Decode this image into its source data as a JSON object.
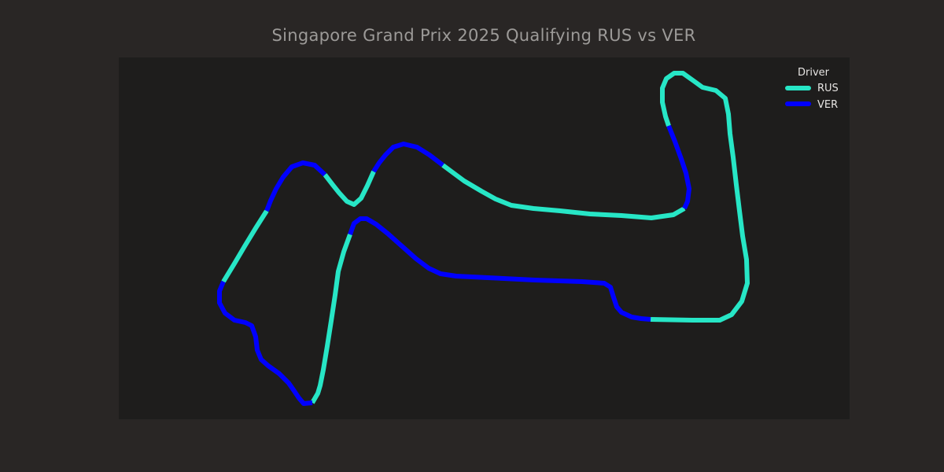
{
  "chart_data": {
    "type": "line",
    "title": "Singapore Grand Prix 2025 Qualifying RUS vs VER",
    "xlabel": "",
    "ylabel": "",
    "grid": false,
    "axes_visible": false,
    "legend": {
      "title": "Driver",
      "placement": "top-right",
      "entries": [
        {
          "name": "RUS",
          "color": "#27e6c6"
        },
        {
          "name": "VER",
          "color": "#0000ff"
        }
      ]
    },
    "description_note": "Track map: sequential x/y track coordinates colored by the faster driver in each mini-sector.",
    "series": [
      {
        "name": "RUS",
        "color": "#27e6c6",
        "segments": [
          [
            [
              827,
              406
            ],
            [
              880,
              407
            ],
            [
              915,
              407
            ],
            [
              930,
              400
            ],
            [
              943,
              383
            ],
            [
              950,
              360
            ],
            [
              949,
              330
            ],
            [
              944,
              300
            ],
            [
              940,
              268
            ],
            [
              936,
              235
            ],
            [
              932,
              200
            ],
            [
              928,
              170
            ],
            [
              926,
              145
            ],
            [
              922,
              125
            ],
            [
              910,
              115
            ],
            [
              893,
              111
            ],
            [
              882,
              103
            ],
            [
              868,
              93
            ],
            [
              857,
              93
            ],
            [
              847,
              100
            ],
            [
              842,
              112
            ],
            [
              842,
              130
            ],
            [
              846,
              148
            ],
            [
              850,
              160
            ]
          ],
          [
            [
              870,
              265
            ],
            [
              856,
              273
            ],
            [
              828,
              277
            ],
            [
              790,
              274
            ],
            [
              750,
              272
            ],
            [
              712,
              268
            ],
            [
              678,
              265
            ],
            [
              650,
              261
            ],
            [
              630,
              253
            ],
            [
              612,
              243
            ],
            [
              590,
              230
            ],
            [
              563,
              210
            ]
          ],
          [
            [
              475,
              218
            ],
            [
              467,
              236
            ],
            [
              459,
              252
            ],
            [
              450,
              260
            ],
            [
              441,
              256
            ],
            [
              431,
              245
            ],
            [
              423,
              235
            ],
            [
              413,
              222
            ]
          ],
          [
            [
              339,
              268
            ],
            [
              325,
              290
            ],
            [
              311,
              313
            ],
            [
              298,
              335
            ],
            [
              284,
              358
            ]
          ],
          [
            [
              445,
              298
            ],
            [
              437,
              320
            ],
            [
              430,
              345
            ],
            [
              426,
              375
            ],
            [
              421,
              408
            ],
            [
              416,
              440
            ],
            [
              411,
              470
            ],
            [
              407,
              490
            ],
            [
              404,
              500
            ],
            [
              397,
              512
            ]
          ]
        ]
      },
      {
        "name": "VER",
        "color": "#0000ff",
        "segments": [
          [
            [
              850,
              160
            ],
            [
              858,
              180
            ],
            [
              866,
              202
            ],
            [
              872,
              220
            ],
            [
              876,
              240
            ],
            [
              874,
              256
            ],
            [
              870,
              265
            ]
          ],
          [
            [
              563,
              210
            ],
            [
              546,
              197
            ],
            [
              530,
              187
            ],
            [
              513,
              183
            ],
            [
              500,
              187
            ],
            [
              490,
              197
            ],
            [
              482,
              207
            ],
            [
              475,
              218
            ]
          ],
          [
            [
              413,
              222
            ],
            [
              400,
              210
            ],
            [
              385,
              207
            ],
            [
              371,
              212
            ],
            [
              360,
              225
            ],
            [
              351,
              240
            ],
            [
              344,
              255
            ],
            [
              339,
              268
            ]
          ],
          [
            [
              284,
              358
            ],
            [
              279,
              370
            ],
            [
              279,
              385
            ],
            [
              286,
              398
            ],
            [
              298,
              407
            ],
            [
              312,
              410
            ],
            [
              320,
              414
            ],
            [
              325,
              428
            ],
            [
              327,
              445
            ],
            [
              332,
              457
            ],
            [
              341,
              465
            ],
            [
              355,
              475
            ],
            [
              367,
              487
            ],
            [
              374,
              497
            ],
            [
              380,
              506
            ],
            [
              386,
              513
            ],
            [
              397,
              512
            ]
          ],
          [
            [
              445,
              298
            ],
            [
              450,
              284
            ],
            [
              458,
              278
            ],
            [
              466,
              278
            ],
            [
              478,
              285
            ],
            [
              493,
              297
            ],
            [
              511,
              313
            ],
            [
              529,
              329
            ],
            [
              545,
              341
            ],
            [
              560,
              348
            ],
            [
              580,
              351
            ],
            [
              620,
              353
            ],
            [
              680,
              356
            ],
            [
              740,
              358
            ],
            [
              768,
              360
            ],
            [
              776,
              365
            ],
            [
              780,
              378
            ],
            [
              784,
              390
            ],
            [
              790,
              397
            ],
            [
              803,
              403
            ],
            [
              815,
              405
            ],
            [
              827,
              406
            ]
          ]
        ]
      }
    ]
  }
}
